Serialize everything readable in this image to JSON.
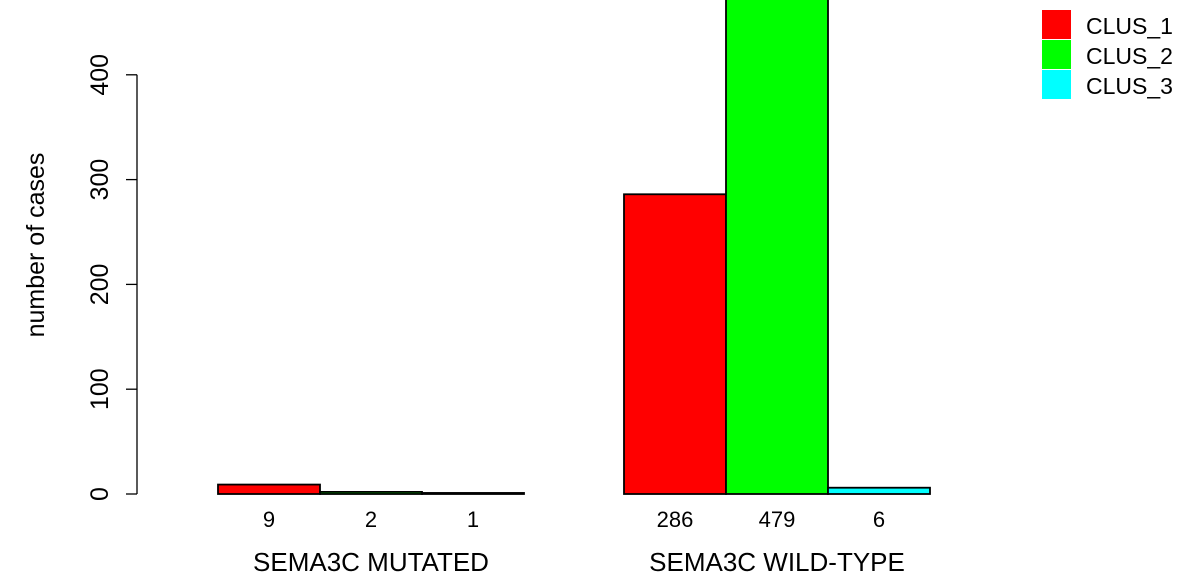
{
  "chart_data": {
    "type": "bar",
    "title": "",
    "xlabel": "",
    "ylabel": "number of cases",
    "ylim": [
      0,
      479
    ],
    "yticks": [
      0,
      100,
      200,
      300,
      400
    ],
    "grid": false,
    "legend_position": "top-right",
    "groups": [
      "SEMA3C MUTATED",
      "SEMA3C WILD-TYPE"
    ],
    "series": [
      {
        "name": "CLUS_1",
        "color": "#ff0000",
        "values": [
          9,
          286
        ]
      },
      {
        "name": "CLUS_2",
        "color": "#00ff00",
        "values": [
          2,
          479
        ]
      },
      {
        "name": "CLUS_3",
        "color": "#00ffff",
        "values": [
          1,
          6
        ]
      }
    ]
  }
}
